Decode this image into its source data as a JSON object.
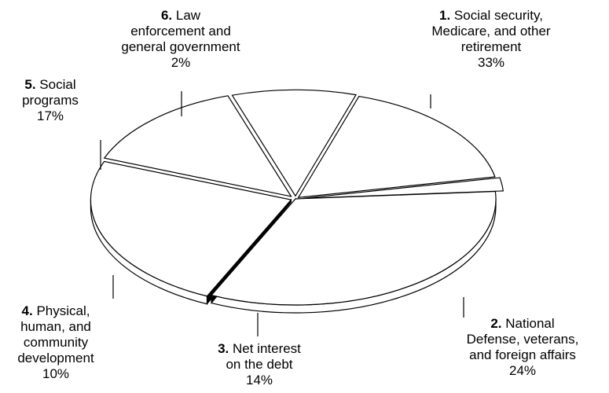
{
  "chart_data": {
    "type": "pie",
    "style": "3d-tilted-exploded",
    "colors": {
      "fill": "#ffffff",
      "stroke": "#000000"
    },
    "slices": [
      {
        "number": "1.",
        "lines": [
          "Social security,",
          "Medicare, and other",
          "retirement"
        ],
        "value_label": "33%",
        "value": 33
      },
      {
        "number": "2.",
        "lines": [
          "National",
          "Defense, veterans,",
          "and foreign affairs"
        ],
        "value_label": "24%",
        "value": 24
      },
      {
        "number": "3.",
        "lines": [
          "Net interest",
          "on the debt"
        ],
        "value_label": "14%",
        "value": 14
      },
      {
        "number": "4.",
        "lines": [
          "Physical,",
          "human, and",
          "community",
          "development"
        ],
        "value_label": "10%",
        "value": 10
      },
      {
        "number": "5.",
        "lines": [
          "Social",
          "programs"
        ],
        "value_label": "17%",
        "value": 17
      },
      {
        "number": "6.",
        "lines": [
          "Law",
          "enforcement and",
          "general government"
        ],
        "value_label": "2%",
        "value": 2
      }
    ]
  }
}
